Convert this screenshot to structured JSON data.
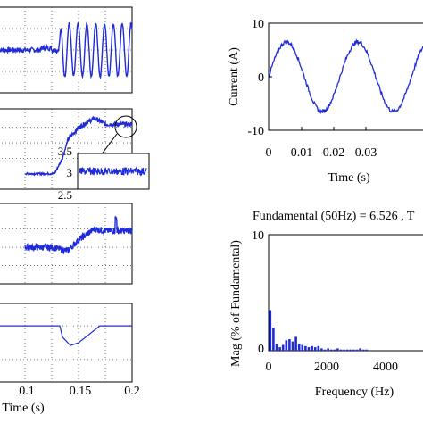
{
  "colors": {
    "trace": "#1f2ad8",
    "axis": "#000000",
    "grid": "#555555",
    "bar": "#1f2ad8"
  },
  "chart_data": [
    {
      "id": "left-p1",
      "type": "line",
      "description_free": true,
      "series": [
        {
          "x": [
            0.0,
            0.02,
            0.03,
            0.04,
            0.05,
            0.06,
            0.065,
            0.07,
            0.08,
            0.09,
            0.1,
            0.11,
            0.12,
            0.13,
            0.14,
            0.15
          ],
          "values": [
            0.0,
            0.05,
            -0.05,
            0.02,
            -0.02,
            0.0,
            0.0,
            0.5,
            -0.5,
            0.5,
            -0.5,
            0.5,
            -0.5,
            0.5,
            -0.5,
            0.0
          ]
        }
      ],
      "xlim": [
        -0.05,
        0.2
      ],
      "ylim": [
        -1,
        1
      ],
      "grid": true
    },
    {
      "id": "left-p2",
      "type": "line",
      "series": [
        {
          "x": [
            0.0,
            0.055,
            0.07,
            0.08,
            0.1,
            0.12,
            0.13,
            0.15,
            0.2
          ],
          "values": [
            2.5,
            2.5,
            3.0,
            3.6,
            4.0,
            4.2,
            4.3,
            4.1,
            4.1
          ]
        }
      ],
      "xlim": [
        -0.05,
        0.2
      ],
      "ylim": [
        2,
        4.6
      ],
      "grid": true,
      "inset": {
        "ticks": [
          "3.5",
          "3",
          "2.5"
        ]
      }
    },
    {
      "id": "left-p3",
      "type": "line",
      "series": [
        {
          "x": [
            0.0,
            0.05,
            0.08,
            0.1,
            0.12,
            0.13,
            0.15,
            0.2
          ],
          "values": [
            0.0,
            0.0,
            -0.1,
            0.2,
            0.4,
            0.5,
            0.45,
            0.45
          ]
        }
      ],
      "xlim": [
        -0.05,
        0.2
      ],
      "ylim": [
        -1,
        1.2
      ],
      "grid": true
    },
    {
      "id": "left-p4",
      "type": "line",
      "series": [
        {
          "x": [
            -0.05,
            0.065,
            0.07,
            0.085,
            0.1,
            0.12,
            0.14,
            0.2
          ],
          "values": [
            0.0,
            0.0,
            -0.2,
            -0.35,
            -0.3,
            -0.15,
            0.0,
            0.0
          ]
        }
      ],
      "xlim": [
        -0.05,
        0.2
      ],
      "ylim": [
        -1,
        0.4
      ],
      "grid": true,
      "x_ticks": [
        "0.1",
        "0.15",
        "0.2"
      ],
      "xlabel": "Time (s)"
    },
    {
      "id": "current",
      "type": "line",
      "series": [
        {
          "name": "",
          "amplitude": 6.5,
          "frequency_hz": 50,
          "phase_deg": 0
        }
      ],
      "xlim": [
        0,
        0.045
      ],
      "ylim": [
        -10,
        10
      ],
      "x_ticks": [
        "0",
        "0.01",
        "0.02",
        "0.03"
      ],
      "y_ticks": [
        "10",
        "0",
        "-10"
      ],
      "xlabel": "Time (s)",
      "ylabel": "Current (A)"
    },
    {
      "id": "fft",
      "type": "bar",
      "title": "Fundamental (50Hz) = 6.526 , T",
      "xlim": [
        0,
        5000
      ],
      "ylim": [
        0,
        10
      ],
      "x_ticks": [
        "0",
        "2000",
        "4000"
      ],
      "y_ticks": [
        "10",
        "0"
      ],
      "xlabel": "Frequency (Hz)",
      "ylabel": "Mag (% of Fundamental)",
      "x": [
        50,
        150,
        250,
        350,
        450,
        550,
        650,
        750,
        850,
        950,
        1050,
        1150,
        1250,
        1350,
        1450,
        1550,
        1650,
        1750,
        1850,
        1950,
        2050,
        2150,
        2250,
        2350,
        2450,
        2550,
        2650,
        2750,
        2850,
        2950,
        3050
      ],
      "values": [
        3.5,
        2.0,
        0.6,
        0.3,
        0.5,
        0.9,
        1.0,
        0.8,
        1.2,
        0.6,
        0.5,
        0.4,
        0.3,
        0.4,
        0.3,
        0.4,
        0.2,
        0.1,
        0.2,
        0.1,
        0.1,
        0.2,
        0.1,
        0.1,
        0.1,
        0.1,
        0.1,
        0.1,
        0.2,
        0.1,
        0.1
      ]
    }
  ]
}
